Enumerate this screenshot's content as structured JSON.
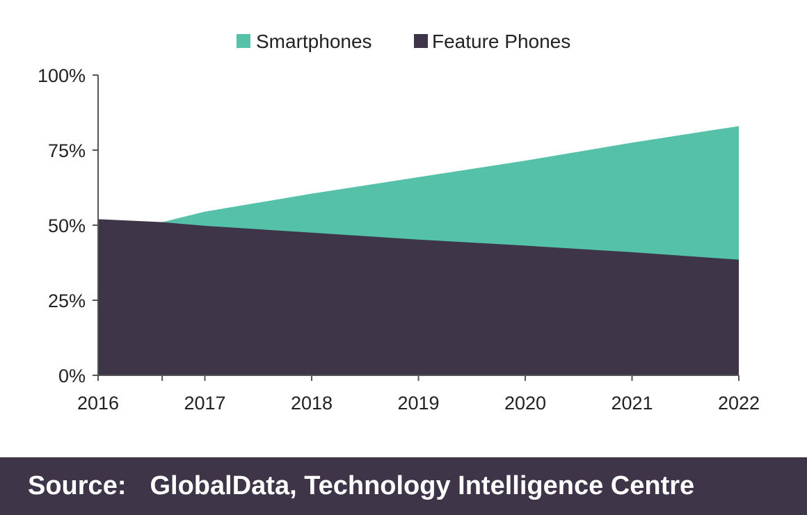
{
  "chart_data": {
    "type": "area",
    "stacked": false,
    "x": [
      "2016",
      "2017",
      "2018",
      "2019",
      "2020",
      "2021",
      "2022"
    ],
    "series": [
      {
        "name": "Smartphones",
        "color": "#55c1a8",
        "x": [
          2016,
          2016.6,
          2017,
          2018,
          2019,
          2020,
          2021,
          2022
        ],
        "values": [
          52,
          51,
          54.5,
          60.5,
          66,
          71.5,
          77.5,
          83
        ]
      },
      {
        "name": "Feature Phones",
        "color": "#3e3549",
        "x": [
          2016,
          2016.6,
          2017,
          2018,
          2019,
          2020,
          2021,
          2022
        ],
        "values": [
          52,
          51,
          49.8,
          47.5,
          45.2,
          43.2,
          41,
          38.5
        ]
      }
    ],
    "yticks": [
      "0%",
      "25%",
      "50%",
      "75%",
      "100%"
    ],
    "ytick_values": [
      0,
      25,
      50,
      75,
      100
    ],
    "ylim": [
      0,
      100
    ],
    "xlim": [
      2016,
      2022
    ],
    "grid": false,
    "legend": "top-center",
    "title": "",
    "xlabel": "",
    "ylabel": ""
  },
  "footer": {
    "source_label": "Source:",
    "source_text": "GlobalData, Technology Intelligence Centre"
  }
}
